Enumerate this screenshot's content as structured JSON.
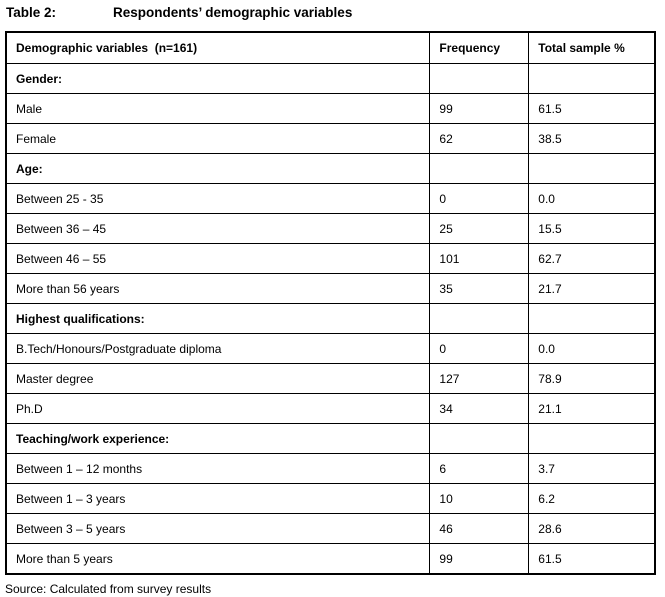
{
  "title": {
    "label": "Table 2:",
    "text": "Respondents’ demographic variables"
  },
  "table": {
    "columns": [
      "Demographic variables  (n=161)",
      "Frequency",
      "Total sample %"
    ],
    "rows": [
      {
        "type": "section",
        "label": "Gender:",
        "frequency": "",
        "percent": ""
      },
      {
        "type": "data",
        "label": "Male",
        "frequency": "99",
        "percent": "61.5"
      },
      {
        "type": "data",
        "label": "Female",
        "frequency": "62",
        "percent": "38.5"
      },
      {
        "type": "section",
        "label": "Age:",
        "frequency": "",
        "percent": ""
      },
      {
        "type": "data",
        "label": "Between 25 - 35",
        "frequency": "0",
        "percent": "0.0"
      },
      {
        "type": "data",
        "label": "Between 36 – 45",
        "frequency": "25",
        "percent": "15.5"
      },
      {
        "type": "data",
        "label": "Between 46 – 55",
        "frequency": "101",
        "percent": "62.7"
      },
      {
        "type": "data",
        "label": "More than 56 years",
        "frequency": "35",
        "percent": "21.7"
      },
      {
        "type": "section",
        "label": "Highest qualifications:",
        "frequency": "",
        "percent": ""
      },
      {
        "type": "data",
        "label": "B.Tech/Honours/Postgraduate diploma",
        "frequency": "0",
        "percent": "0.0"
      },
      {
        "type": "data",
        "label": "Master degree",
        "frequency": "127",
        "percent": "78.9"
      },
      {
        "type": "data",
        "label": "Ph.D",
        "frequency": "34",
        "percent": "21.1"
      },
      {
        "type": "section",
        "label": "Teaching/work experience:",
        "frequency": "",
        "percent": ""
      },
      {
        "type": "data",
        "label": "Between 1 – 12 months",
        "frequency": "6",
        "percent": "3.7"
      },
      {
        "type": "data",
        "label": "Between 1 – 3 years",
        "frequency": "10",
        "percent": "6.2"
      },
      {
        "type": "data",
        "label": "Between 3 – 5 years",
        "frequency": "46",
        "percent": "28.6"
      },
      {
        "type": "data",
        "label": "More than 5 years",
        "frequency": "99",
        "percent": "61.5"
      }
    ]
  },
  "source": "Source: Calculated from survey results",
  "colors": {
    "text": "#000000",
    "border": "#000000",
    "background": "#ffffff"
  }
}
